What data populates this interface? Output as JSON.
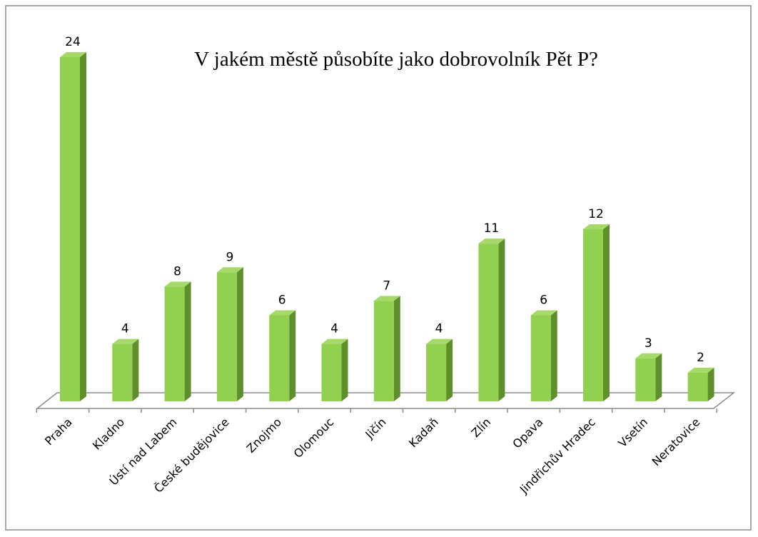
{
  "chart_data": {
    "type": "bar3d",
    "title": "V jakém městě působíte jako dobrovolník  Pět P?",
    "categories": [
      "Praha",
      "Kladno",
      "Ústí nad Labem",
      "České budějovice",
      "Znojmo",
      "Olomouc",
      "Jičín",
      "Kadaň",
      "Zlín",
      "Opava",
      "Jindřichův Hradec",
      "Vsetín",
      "Neratovice"
    ],
    "values": [
      24,
      4,
      8,
      9,
      6,
      4,
      7,
      4,
      11,
      6,
      12,
      3,
      2
    ],
    "color": "#92d050"
  }
}
